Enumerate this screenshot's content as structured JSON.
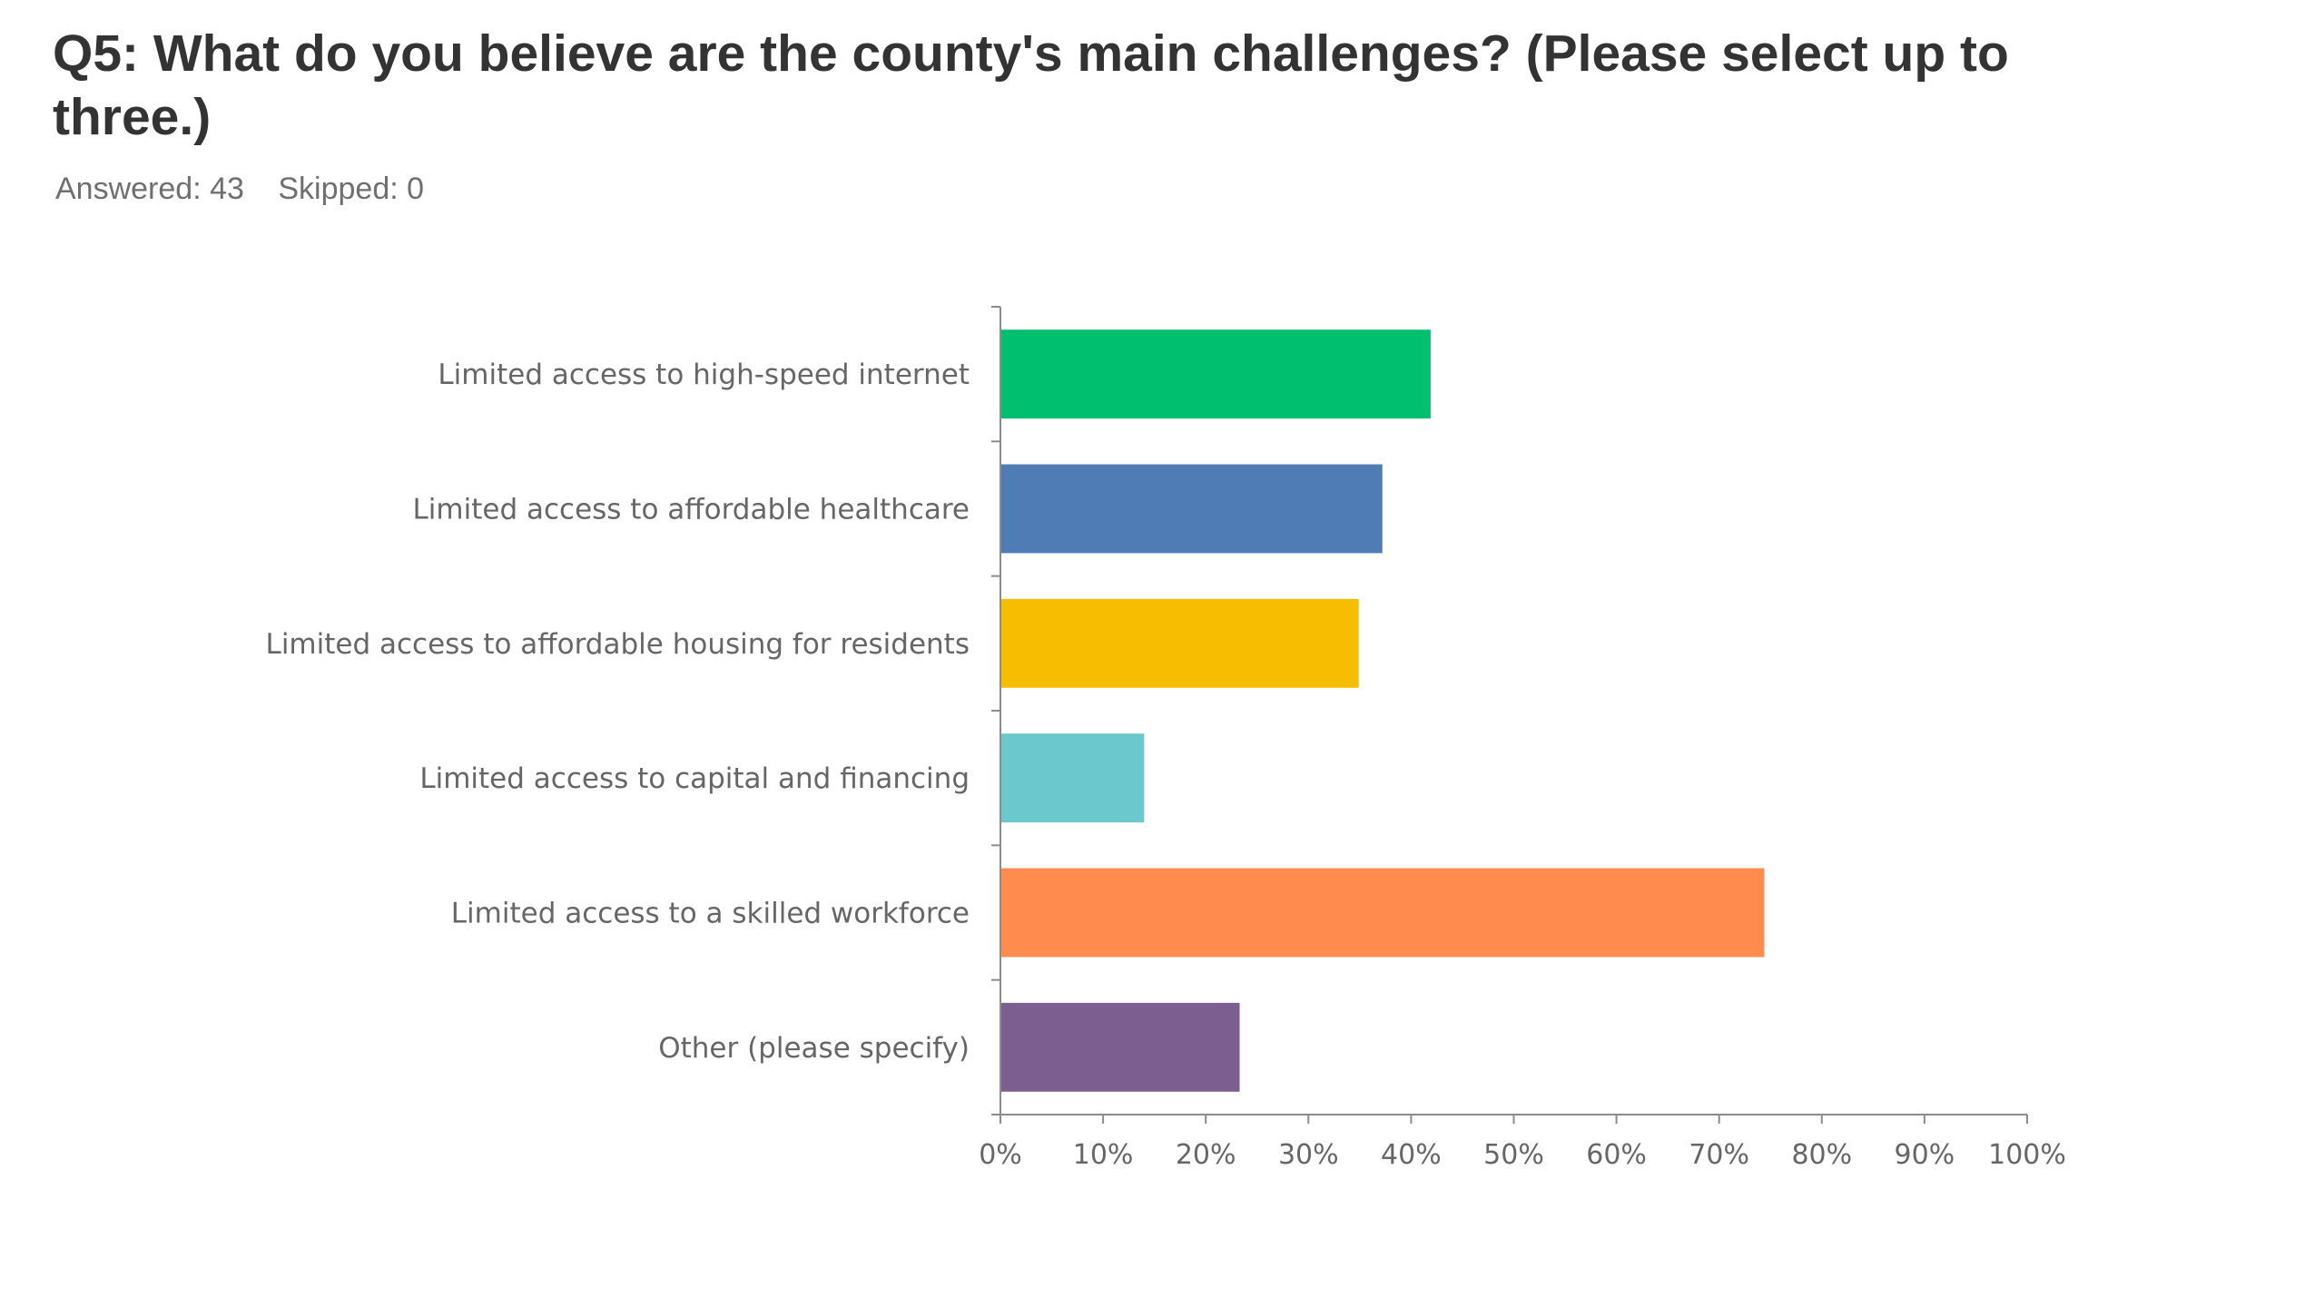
{
  "question": {
    "title": "Q5: What do you believe are the county's main challenges? (Please select up to three.)",
    "answered_label": "Answered: 43",
    "skipped_label": "Skipped: 0"
  },
  "chart_data": {
    "type": "bar",
    "orientation": "horizontal",
    "title": "",
    "xlabel": "",
    "ylabel": "",
    "xlim": [
      0,
      100
    ],
    "value_unit": "%",
    "grid": false,
    "legend": "none",
    "categories": [
      "Limited access to high-speed internet",
      "Limited access to affordable healthcare",
      "Limited access to affordable housing for residents",
      "Limited access to capital and financing",
      "Limited access to a skilled workforce",
      "Other (please specify)"
    ],
    "values": [
      41.9,
      37.2,
      34.9,
      14.0,
      74.4,
      23.3
    ],
    "colors": [
      "#00bf6f",
      "#507cb6",
      "#f7bd00",
      "#6bc8cd",
      "#ff8b4f",
      "#7d5e90"
    ],
    "axis_color": "#8c8c8c",
    "tick_labels": [
      "0%",
      "10%",
      "20%",
      "30%",
      "40%",
      "50%",
      "60%",
      "70%",
      "80%",
      "90%",
      "100%"
    ]
  }
}
